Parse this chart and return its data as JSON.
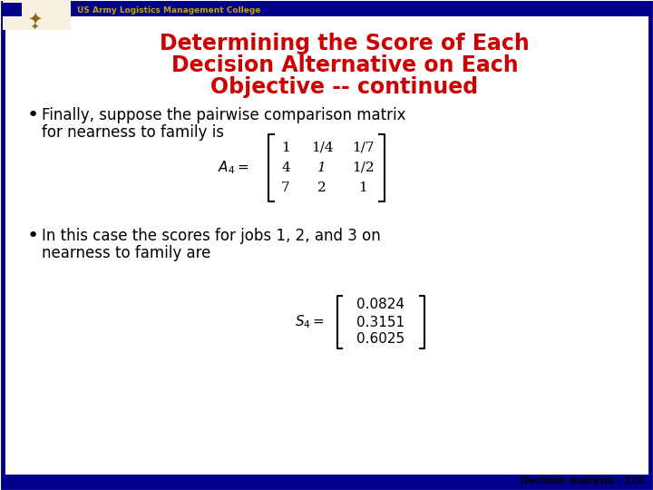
{
  "title_line1": "Determining the Score of Each",
  "title_line2": "Decision Alternative on Each",
  "title_line3": "Objective -- continued",
  "title_color": "#CC0000",
  "header_text": "US Army Logistics Management College",
  "header_color": "#C8A200",
  "header_bar_color": "#00008B",
  "border_color": "#00008B",
  "background_color": "#FFFFFF",
  "footer_text": "Decision Analysis - 120",
  "bullet1_text1": "Finally, suppose the pairwise comparison matrix",
  "bullet1_text2": "for nearness to family is",
  "bullet2_text1": "In this case the scores for jobs 1, 2, and 3 on",
  "bullet2_text2": "nearness to family are",
  "matrix_A4_rows": [
    [
      "1",
      "1/4",
      "1/7"
    ],
    [
      "4",
      "1",
      "1/2"
    ],
    [
      "7",
      "2",
      "1"
    ]
  ],
  "matrix_S4_rows": [
    [
      "0.0824"
    ],
    [
      "0.3151"
    ],
    [
      "0.6025"
    ]
  ],
  "text_color": "#000000"
}
